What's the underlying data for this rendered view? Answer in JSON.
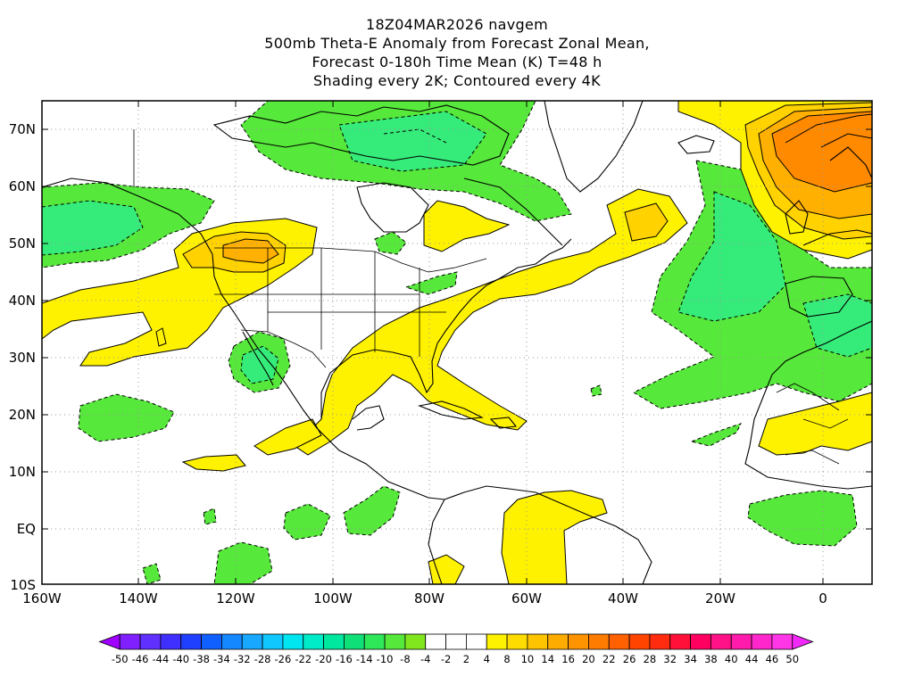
{
  "title_lines": [
    "18Z04MAR2026 navgem",
    "500mb Theta-E Anomaly from Forecast Zonal Mean,",
    "Forecast 0-180h Time Mean (K) T=48 h",
    "Shading every 2K; Contoured every 4K"
  ],
  "x_ticks": [
    "160W",
    "140W",
    "120W",
    "100W",
    "80W",
    "60W",
    "40W",
    "20W",
    "0"
  ],
  "y_ticks": [
    "70N",
    "60N",
    "50N",
    "40N",
    "30N",
    "20N",
    "10N",
    "EQ",
    "10S"
  ],
  "colorbar": {
    "labels": [
      "-50",
      "-46",
      "-44",
      "-40",
      "-38",
      "-34",
      "-32",
      "-28",
      "-26",
      "-22",
      "-20",
      "-16",
      "-14",
      "-10",
      "-8",
      "-4",
      "-2",
      "2",
      "4",
      "8",
      "10",
      "14",
      "16",
      "20",
      "22",
      "26",
      "28",
      "32",
      "34",
      "38",
      "40",
      "44",
      "46",
      "50"
    ],
    "colors": [
      "#a000ff",
      "#8020ff",
      "#6030ff",
      "#4030ff",
      "#2040ff",
      "#1060ff",
      "#1488ff",
      "#18a8ff",
      "#10c8ff",
      "#00e6f0",
      "#00ecc8",
      "#00e8a0",
      "#10e078",
      "#2ee85a",
      "#56e83a",
      "#82e61e",
      "#ffffff",
      "#ffffff",
      "#ffffff",
      "#fff200",
      "#ffdc00",
      "#ffc400",
      "#ffac00",
      "#ff9400",
      "#ff7c00",
      "#ff6000",
      "#ff4400",
      "#ff2c10",
      "#ff1038",
      "#ff0060",
      "#ff1288",
      "#ff1cac",
      "#ff26cc",
      "#ff36e8",
      "#f028f8"
    ]
  },
  "colors": {
    "green_inner": "#2ce8a0",
    "green_mid": "#35ec7a",
    "green_outer": "#56e83a",
    "yellow": "#fff200",
    "gold": "#ffd200",
    "orange": "#ffb000",
    "orange_deep": "#ff8a00"
  }
}
